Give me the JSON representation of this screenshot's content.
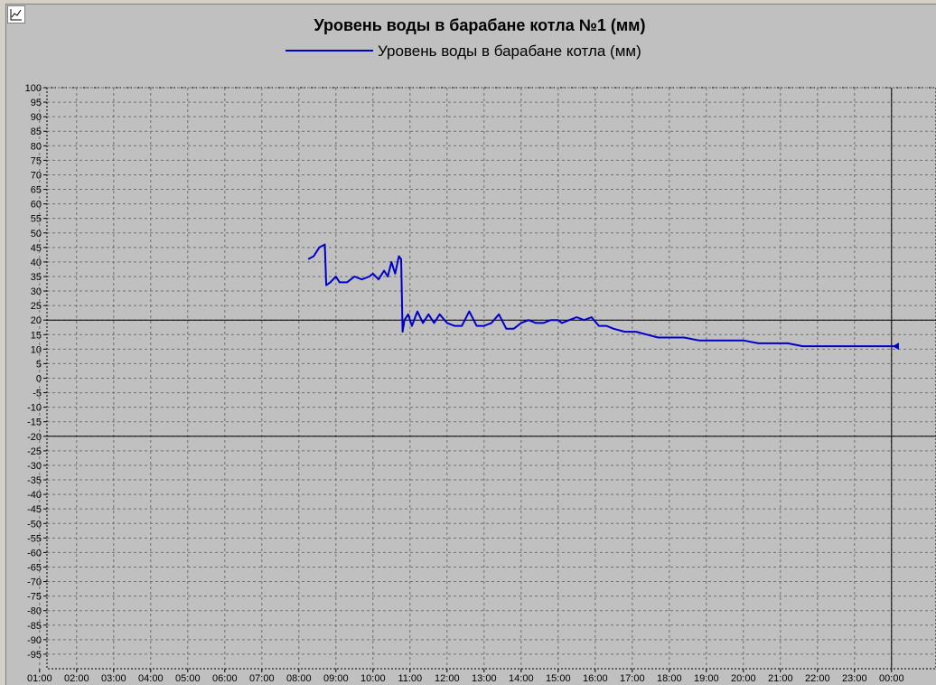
{
  "chart_data": {
    "type": "line",
    "title": "Уровень воды в барабане котла №1 (мм)",
    "legend_position": "top-center",
    "grid": true,
    "ylim": [
      -100,
      100
    ],
    "y_ticks": [
      100,
      95,
      90,
      85,
      80,
      75,
      70,
      65,
      60,
      55,
      50,
      45,
      40,
      35,
      30,
      25,
      20,
      15,
      10,
      5,
      0,
      -5,
      -10,
      -15,
      -20,
      -25,
      -30,
      -35,
      -40,
      -45,
      -50,
      -55,
      -60,
      -65,
      -70,
      -75,
      -80,
      -85,
      -90,
      -95
    ],
    "x_ticks": [
      "02:00",
      "03:00",
      "04:00",
      "05:00",
      "06:00",
      "07:00",
      "08:00",
      "09:00",
      "10:00",
      "11:00",
      "12:00",
      "13:00",
      "14:00",
      "15:00",
      "16:00",
      "17:00",
      "18:00",
      "19:00",
      "20:00",
      "21:00",
      "22:00",
      "23:00",
      "00:00",
      "01:00"
    ],
    "x_hour_range": [
      1.2,
      25.2
    ],
    "reference_lines": [
      20,
      -20
    ],
    "current_time_marker": "00:00",
    "series": [
      {
        "name": "Уровень воды в барабане котла (мм)",
        "color": "#0000cc",
        "points": [
          [
            8.25,
            41
          ],
          [
            8.4,
            42
          ],
          [
            8.55,
            45
          ],
          [
            8.7,
            46
          ],
          [
            8.74,
            32
          ],
          [
            8.85,
            33
          ],
          [
            9.0,
            35
          ],
          [
            9.1,
            33
          ],
          [
            9.3,
            33
          ],
          [
            9.5,
            35
          ],
          [
            9.7,
            34
          ],
          [
            9.9,
            35
          ],
          [
            10.0,
            36
          ],
          [
            10.15,
            34
          ],
          [
            10.3,
            37
          ],
          [
            10.4,
            35
          ],
          [
            10.5,
            40
          ],
          [
            10.6,
            36
          ],
          [
            10.7,
            42
          ],
          [
            10.76,
            41
          ],
          [
            10.8,
            16
          ],
          [
            10.85,
            20
          ],
          [
            10.95,
            22
          ],
          [
            11.05,
            18
          ],
          [
            11.2,
            23
          ],
          [
            11.35,
            19
          ],
          [
            11.5,
            22
          ],
          [
            11.65,
            19
          ],
          [
            11.8,
            22
          ],
          [
            12.0,
            19
          ],
          [
            12.2,
            18
          ],
          [
            12.4,
            18
          ],
          [
            12.6,
            23
          ],
          [
            12.8,
            18
          ],
          [
            13.0,
            18
          ],
          [
            13.2,
            19
          ],
          [
            13.4,
            22
          ],
          [
            13.6,
            17
          ],
          [
            13.8,
            17
          ],
          [
            14.0,
            19
          ],
          [
            14.2,
            20
          ],
          [
            14.4,
            19
          ],
          [
            14.6,
            19
          ],
          [
            14.8,
            20
          ],
          [
            15.0,
            20
          ],
          [
            15.1,
            19
          ],
          [
            15.3,
            20
          ],
          [
            15.5,
            21
          ],
          [
            15.7,
            20
          ],
          [
            15.9,
            21
          ],
          [
            16.1,
            18
          ],
          [
            16.3,
            18
          ],
          [
            16.5,
            17
          ],
          [
            16.8,
            16
          ],
          [
            17.1,
            16
          ],
          [
            17.4,
            15
          ],
          [
            17.7,
            14
          ],
          [
            18.0,
            14
          ],
          [
            18.4,
            14
          ],
          [
            18.8,
            13
          ],
          [
            19.2,
            13
          ],
          [
            19.6,
            13
          ],
          [
            20.0,
            13
          ],
          [
            20.4,
            12
          ],
          [
            20.8,
            12
          ],
          [
            21.2,
            12
          ],
          [
            21.6,
            11
          ],
          [
            22.0,
            11
          ],
          [
            22.4,
            11
          ],
          [
            22.8,
            11
          ],
          [
            23.2,
            11
          ],
          [
            23.6,
            11
          ],
          [
            24.0,
            11
          ],
          [
            24.1,
            11
          ]
        ]
      }
    ]
  }
}
